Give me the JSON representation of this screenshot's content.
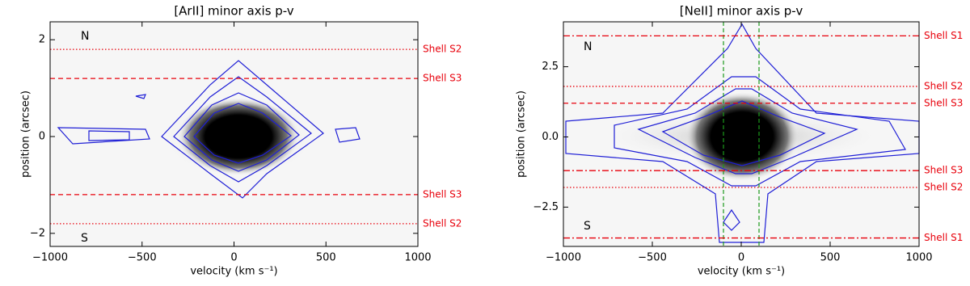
{
  "chart_data": [
    {
      "type": "image",
      "title": "[ArII] minor axis p-v",
      "xlabel": "velocity (km s⁻¹)",
      "ylabel": "position (arcsec)",
      "xlim": [
        -1000,
        1000
      ],
      "ylim": [
        -2.27,
        2.37
      ],
      "xticks": [
        {
          "value": -1000,
          "label": "−1000"
        },
        {
          "value": -500,
          "label": "−500"
        },
        0,
        500,
        1000
      ],
      "yticks": [
        {
          "value": -2,
          "label": "−2"
        },
        0,
        2
      ],
      "annotations": [
        "N",
        "S"
      ],
      "hlines": [
        {
          "label": "Shell S2",
          "value": 1.8,
          "style": "dotted",
          "color": "#e8000b"
        },
        {
          "label": "Shell S3",
          "value": 1.2,
          "style": "dashed",
          "color": "#e8000b"
        },
        {
          "label": "Shell S3",
          "value": -1.2,
          "style": "dashed",
          "color": "#e8000b"
        },
        {
          "label": "Shell S2",
          "value": -1.8,
          "style": "dotted",
          "color": "#e8000b"
        }
      ],
      "vlines": []
    },
    {
      "type": "image",
      "title": "[NeII] minor axis p-v",
      "xlabel": "velocity (km s⁻¹)",
      "ylabel": "position (arcsec)",
      "xlim": [
        -1000,
        1000
      ],
      "ylim": [
        -3.9,
        4.1
      ],
      "xticks": [
        {
          "value": -1000,
          "label": "−1000"
        },
        {
          "value": -500,
          "label": "−500"
        },
        0,
        500,
        1000
      ],
      "yticks": [
        {
          "value": -2.5,
          "label": "−2.5"
        },
        {
          "value": 0,
          "label": "0.0"
        },
        2.5
      ],
      "annotations": [
        "N",
        "S"
      ],
      "hlines": [
        {
          "label": "Shell S1",
          "value": 3.6,
          "style": "dashdot",
          "color": "#e8000b"
        },
        {
          "label": "Shell S2",
          "value": 1.8,
          "style": "dotted",
          "color": "#e8000b"
        },
        {
          "label": "Shell S3",
          "value": 1.2,
          "style": "dashed",
          "color": "#e8000b"
        },
        {
          "label": "Shell S3",
          "value": -1.2,
          "style": "dashdot",
          "color": "#e8000b"
        },
        {
          "label": "Shell S2",
          "value": -1.8,
          "style": "dotted",
          "color": "#e8000b"
        },
        {
          "label": "Shell S1",
          "value": -3.6,
          "style": "dashdot",
          "color": "#e8000b"
        }
      ],
      "vlines": [
        {
          "value": -100,
          "color": "#1a9a1a"
        },
        {
          "value": 100,
          "color": "#1a9a1a"
        }
      ]
    }
  ]
}
